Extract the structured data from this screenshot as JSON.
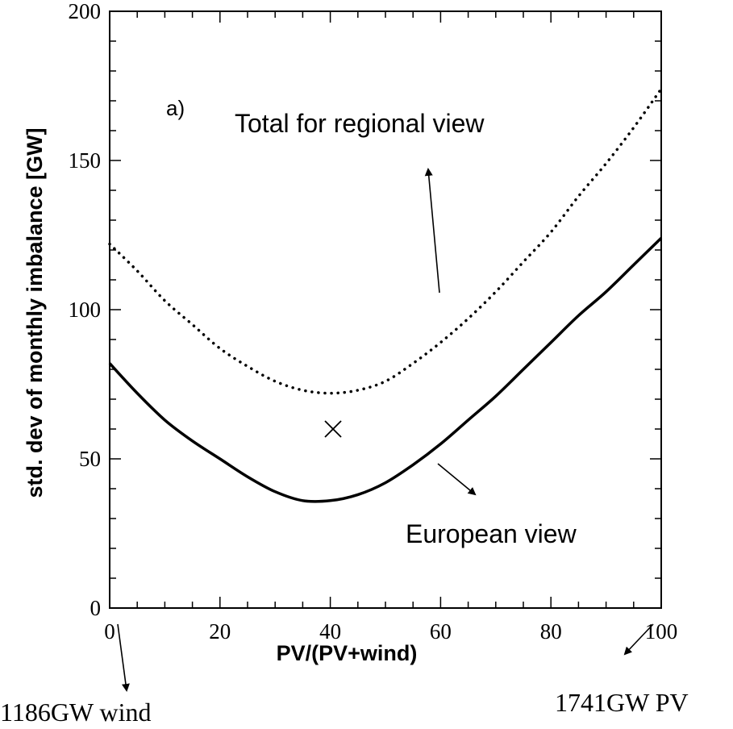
{
  "chart_data": {
    "type": "line",
    "title": "",
    "panel_label": "a)",
    "xlabel": "PV/(PV+wind)",
    "ylabel": "std. dev of monthly imbalance [GW]",
    "xlim": [
      0,
      100
    ],
    "ylim": [
      0,
      200
    ],
    "x_ticks": [
      0,
      20,
      40,
      60,
      80,
      100
    ],
    "y_ticks": [
      0,
      50,
      100,
      150,
      200
    ],
    "grid": false,
    "legend": "none",
    "series": [
      {
        "line_style": "dotted",
        "color": "#000000",
        "x": [
          0,
          5,
          10,
          15,
          20,
          25,
          30,
          35,
          40,
          45,
          50,
          55,
          60,
          65,
          70,
          75,
          80,
          85,
          90,
          95,
          100
        ],
        "y": [
          122,
          113,
          103,
          95,
          87,
          81,
          76,
          73,
          72,
          73,
          76,
          82,
          89,
          97,
          106,
          116,
          126,
          138,
          149,
          161,
          174
        ]
      },
      {
        "line_style": "solid",
        "color": "#000000",
        "x": [
          0,
          5,
          10,
          15,
          20,
          25,
          30,
          35,
          40,
          45,
          50,
          55,
          60,
          65,
          70,
          75,
          80,
          85,
          90,
          95,
          100
        ],
        "y": [
          82,
          72,
          63,
          56,
          50,
          44,
          39,
          36,
          36,
          38,
          42,
          48,
          55,
          63,
          71,
          80,
          89,
          98,
          106,
          115,
          124
        ]
      }
    ],
    "markers": [
      {
        "symbol": "x",
        "x": 40.5,
        "y": 60
      }
    ],
    "annotations": {
      "total_regional": "Total for regional view",
      "european": "European view",
      "wind_endpoint": "1186GW wind",
      "pv_endpoint": "1741GW PV"
    }
  }
}
